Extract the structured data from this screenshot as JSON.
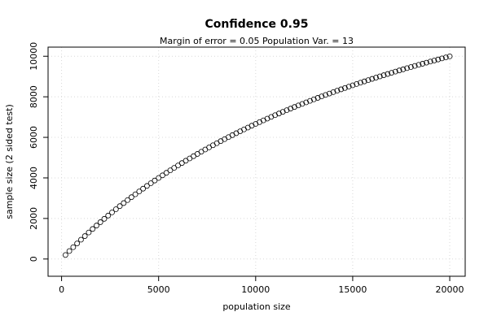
{
  "chart_data": {
    "type": "scatter",
    "title": "Confidence 0.95",
    "subtitle": "Margin of error =  0.05  Population Var. =  13",
    "xlabel": "population size",
    "ylabel": "sample size (2 sided test)",
    "x": [
      200,
      400,
      600,
      800,
      1000,
      1200,
      1400,
      1600,
      1800,
      2000,
      2200,
      2400,
      2600,
      2800,
      3000,
      3200,
      3400,
      3600,
      3800,
      4000,
      4200,
      4400,
      4600,
      4800,
      5000,
      5200,
      5400,
      5600,
      5800,
      6000,
      6200,
      6400,
      6600,
      6800,
      7000,
      7200,
      7400,
      7600,
      7800,
      8000,
      8200,
      8400,
      8600,
      8800,
      9000,
      9200,
      9400,
      9600,
      9800,
      10000,
      10200,
      10400,
      10600,
      10800,
      11000,
      11200,
      11400,
      11600,
      11800,
      12000,
      12200,
      12400,
      12600,
      12800,
      13000,
      13200,
      13400,
      13600,
      13800,
      14000,
      14200,
      14400,
      14600,
      14800,
      15000,
      15200,
      15400,
      15600,
      15800,
      16000,
      16200,
      16400,
      16600,
      16800,
      17000,
      17200,
      17400,
      17600,
      17800,
      18000,
      18200,
      18400,
      18600,
      18800,
      19000,
      19200,
      19400,
      19600,
      19800,
      20000
    ],
    "values": [
      198,
      392,
      583,
      769,
      952,
      1132,
      1308,
      1481,
      1651,
      1818,
      1982,
      2143,
      2301,
      2456,
      2608,
      2758,
      2906,
      3050,
      3193,
      3333,
      3470,
      3606,
      3739,
      3870,
      3999,
      4126,
      4251,
      4374,
      4495,
      4614,
      4732,
      4847,
      4961,
      5073,
      5184,
      5292,
      5400,
      5505,
      5610,
      5712,
      5814,
      5913,
      6012,
      6109,
      6205,
      6299,
      6392,
      6484,
      6575,
      6664,
      6752,
      6839,
      6925,
      7010,
      7094,
      7176,
      7258,
      7339,
      7418,
      7497,
      7574,
      7651,
      7726,
      7801,
      7875,
      7948,
      8020,
      8091,
      8162,
      8231,
      8300,
      8368,
      8435,
      8501,
      8567,
      8632,
      8696,
      8759,
      8822,
      8884,
      8946,
      9006,
      9066,
      9125,
      9184,
      9242,
      9300,
      9356,
      9413,
      9468,
      9523,
      9578,
      9632,
      9685,
      9738,
      9790,
      9842,
      9893,
      9944,
      9994
    ],
    "color": "#000000",
    "xlim": [
      -696,
      20796
    ],
    "xticks": [
      0,
      5000,
      10000,
      15000,
      20000
    ],
    "ylim": [
      -850,
      10450
    ],
    "yticks": [
      0,
      2000,
      4000,
      6000,
      8000,
      10000
    ],
    "grid": true
  }
}
